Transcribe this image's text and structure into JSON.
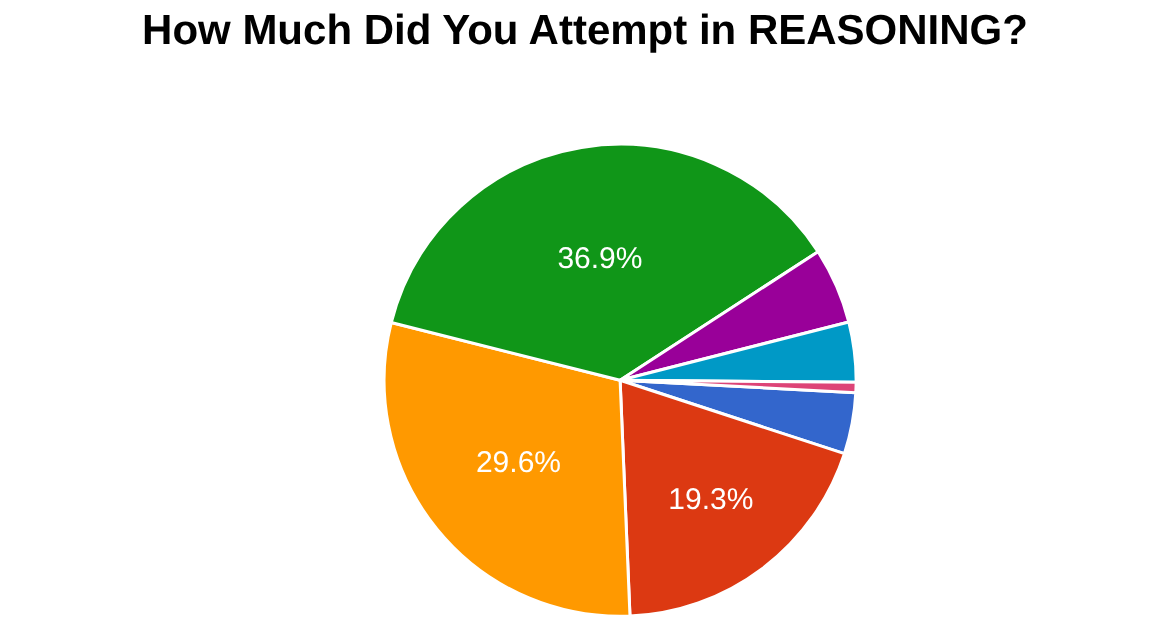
{
  "chart_data": {
    "type": "pie",
    "title": "How Much Did You Attempt in REASONING?",
    "categories": [
      null,
      null,
      null,
      null,
      null,
      null,
      null
    ],
    "values": [
      4.2,
      19.3,
      29.6,
      36.9,
      5.2,
      4.1,
      0.7
    ],
    "value_labels": [
      null,
      "19.3%",
      "29.6%",
      "36.9%",
      null,
      null,
      null
    ],
    "colors": [
      "#3366cc",
      "#dc3912",
      "#ff9900",
      "#109618",
      "#990099",
      "#0099c6",
      "#dd4477"
    ],
    "legend": false
  }
}
